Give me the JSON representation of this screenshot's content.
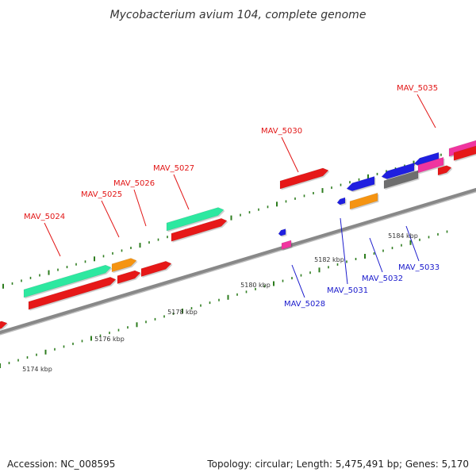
{
  "title": "Mycobacterium avium 104, complete genome",
  "footer": {
    "accession": "Accession: NC_008595",
    "summary": "Topology: circular; Length: 5,475,491 bp; Genes: 5,170"
  },
  "colors": {
    "backbone": "#888888",
    "tick": "#2e7d1f",
    "upper_label": "#e21616",
    "lower_label": "#1a1acc"
  },
  "ticks": [
    {
      "label": "5174 kbp"
    },
    {
      "label": "5176 kbp"
    },
    {
      "label": "5178 kbp"
    },
    {
      "label": "5180 kbp"
    },
    {
      "label": "5182 kbp"
    },
    {
      "label": "5184 kbp"
    }
  ],
  "labels": [
    {
      "text": "MAV_5024",
      "strand": "upper"
    },
    {
      "text": "MAV_5025",
      "strand": "upper"
    },
    {
      "text": "MAV_5026",
      "strand": "upper"
    },
    {
      "text": "MAV_5027",
      "strand": "upper"
    },
    {
      "text": "MAV_5030",
      "strand": "upper"
    },
    {
      "text": "MAV_5035",
      "strand": "upper"
    },
    {
      "text": "MAV_5028",
      "strand": "lower"
    },
    {
      "text": "MAV_5031",
      "strand": "lower"
    },
    {
      "text": "MAV_5032",
      "strand": "lower"
    },
    {
      "text": "MAV_5033",
      "strand": "lower"
    }
  ],
  "features": [
    {
      "name": "feature-1",
      "color": "#e61818",
      "direction": "forward"
    },
    {
      "name": "feature-2",
      "color": "#2de8a0",
      "direction": "forward"
    },
    {
      "name": "feature-3",
      "color": "#e61818",
      "direction": "forward"
    },
    {
      "name": "feature-4",
      "color": "#f59412",
      "direction": "forward"
    },
    {
      "name": "feature-5",
      "color": "#e61818",
      "direction": "forward"
    },
    {
      "name": "feature-6",
      "color": "#e61818",
      "direction": "forward"
    },
    {
      "name": "feature-7",
      "color": "#2de8a0",
      "direction": "forward"
    },
    {
      "name": "feature-8",
      "color": "#e61818",
      "direction": "forward"
    },
    {
      "name": "feature-9",
      "color": "#e61818",
      "direction": "forward"
    },
    {
      "name": "feature-10",
      "color": "#1f1fe0",
      "direction": "reverse"
    },
    {
      "name": "feature-11",
      "color": "#f0359f",
      "direction": "none"
    },
    {
      "name": "feature-12",
      "color": "#1f1fe0",
      "direction": "reverse"
    },
    {
      "name": "feature-13",
      "color": "#1f1fe0",
      "direction": "reverse"
    },
    {
      "name": "feature-14",
      "color": "#f59412",
      "direction": "none"
    },
    {
      "name": "feature-15",
      "color": "#1f1fe0",
      "direction": "reverse"
    },
    {
      "name": "feature-16",
      "color": "#6e6e6e",
      "direction": "none"
    },
    {
      "name": "feature-17",
      "color": "#1f1fe0",
      "direction": "reverse"
    },
    {
      "name": "feature-18",
      "color": "#f0359f",
      "direction": "none"
    },
    {
      "name": "feature-19",
      "color": "#e61818",
      "direction": "forward"
    },
    {
      "name": "feature-20",
      "color": "#f0359f",
      "direction": "none"
    },
    {
      "name": "feature-21",
      "color": "#e61818",
      "direction": "forward"
    }
  ]
}
